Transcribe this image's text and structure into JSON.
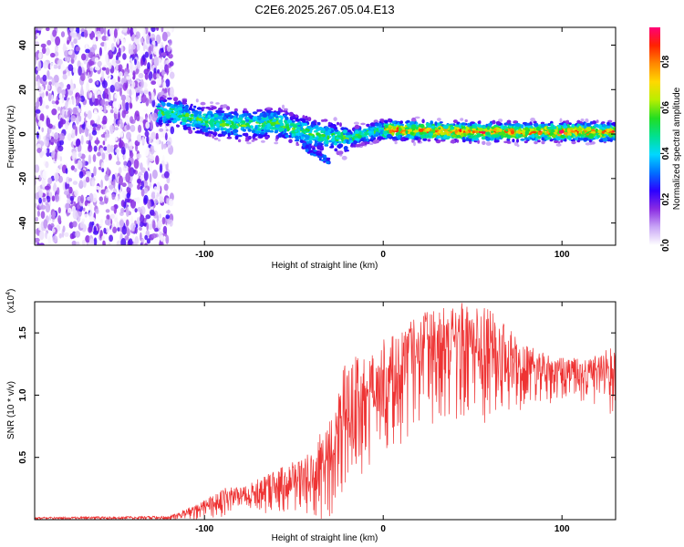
{
  "chart_data": [
    {
      "type": "heatmap",
      "title": "C2E6.2025.267.05.04.E13",
      "xlabel": "Height of straight line (km)",
      "ylabel": "Frequency (Hz)",
      "xlim": [
        -195,
        130
      ],
      "ylim": [
        -50,
        48
      ],
      "x_ticks": [
        -100,
        0,
        100
      ],
      "x_tick_labels": [
        "-100",
        "0",
        "100"
      ],
      "y_ticks": [
        -40,
        -20,
        0,
        20,
        40
      ],
      "y_tick_labels": [
        "-40",
        "-20",
        "0",
        "20",
        "40"
      ],
      "band_center": [
        {
          "x": -120,
          "y": 10
        },
        {
          "x": -100,
          "y": 6
        },
        {
          "x": -80,
          "y": 4
        },
        {
          "x": -60,
          "y": 5
        },
        {
          "x": -40,
          "y": 0
        },
        {
          "x": -20,
          "y": -2
        },
        {
          "x": 0,
          "y": 2
        },
        {
          "x": 50,
          "y": 1
        },
        {
          "x": 130,
          "y": 1
        }
      ],
      "noise_region_xmax": -118,
      "colorbar": {
        "label": "Normalized spectral amplitude",
        "range": [
          0.0,
          0.95
        ],
        "ticks": [
          0.0,
          0.2,
          0.4,
          0.6,
          0.8
        ],
        "tick_labels": [
          "0.0",
          "0.2",
          "0.4",
          "0.6",
          "0.8"
        ],
        "colors": [
          "#ffffff",
          "#c9a6f6",
          "#8a2be2",
          "#2c00ff",
          "#0070ff",
          "#00d8ff",
          "#00e090",
          "#22dd22",
          "#b8ee00",
          "#ffd800",
          "#ff8800",
          "#ff2200",
          "#ff0077"
        ]
      }
    },
    {
      "type": "line",
      "xlabel": "Height of straight line (km)",
      "ylabel": "SNR (10 * v/v)",
      "y_multiplier": "(x10",
      "y_multiplier_exp": "4",
      "y_multiplier_close": ")",
      "xlim": [
        -195,
        130
      ],
      "ylim": [
        0,
        1.75
      ],
      "x_ticks": [
        -100,
        0,
        100
      ],
      "x_tick_labels": [
        "-100",
        "0",
        "100"
      ],
      "y_ticks": [
        0.5,
        1.0,
        1.5
      ],
      "y_tick_labels": [
        "0.5",
        "1.0",
        "1.5"
      ],
      "line_color": "#ee3333",
      "envelope": [
        {
          "x": -195,
          "low": 0.0,
          "high": 0.02
        },
        {
          "x": -120,
          "low": 0.0,
          "high": 0.03
        },
        {
          "x": -105,
          "low": 0.0,
          "high": 0.12
        },
        {
          "x": -90,
          "low": 0.02,
          "high": 0.25
        },
        {
          "x": -75,
          "low": 0.02,
          "high": 0.3
        },
        {
          "x": -60,
          "low": 0.05,
          "high": 0.4
        },
        {
          "x": -45,
          "low": 0.05,
          "high": 0.5
        },
        {
          "x": -35,
          "low": 0.0,
          "high": 0.7
        },
        {
          "x": -28,
          "low": 0.0,
          "high": 0.85
        },
        {
          "x": -20,
          "low": 0.2,
          "high": 1.35
        },
        {
          "x": -10,
          "low": 0.35,
          "high": 1.3
        },
        {
          "x": 0,
          "low": 0.5,
          "high": 1.45
        },
        {
          "x": 10,
          "low": 0.6,
          "high": 1.55
        },
        {
          "x": 20,
          "low": 0.75,
          "high": 1.65
        },
        {
          "x": 40,
          "low": 0.8,
          "high": 1.75
        },
        {
          "x": 60,
          "low": 0.75,
          "high": 1.7
        },
        {
          "x": 80,
          "low": 0.9,
          "high": 1.4
        },
        {
          "x": 100,
          "low": 0.95,
          "high": 1.3
        },
        {
          "x": 115,
          "low": 0.95,
          "high": 1.3
        },
        {
          "x": 130,
          "low": 0.8,
          "high": 1.4
        }
      ]
    }
  ]
}
